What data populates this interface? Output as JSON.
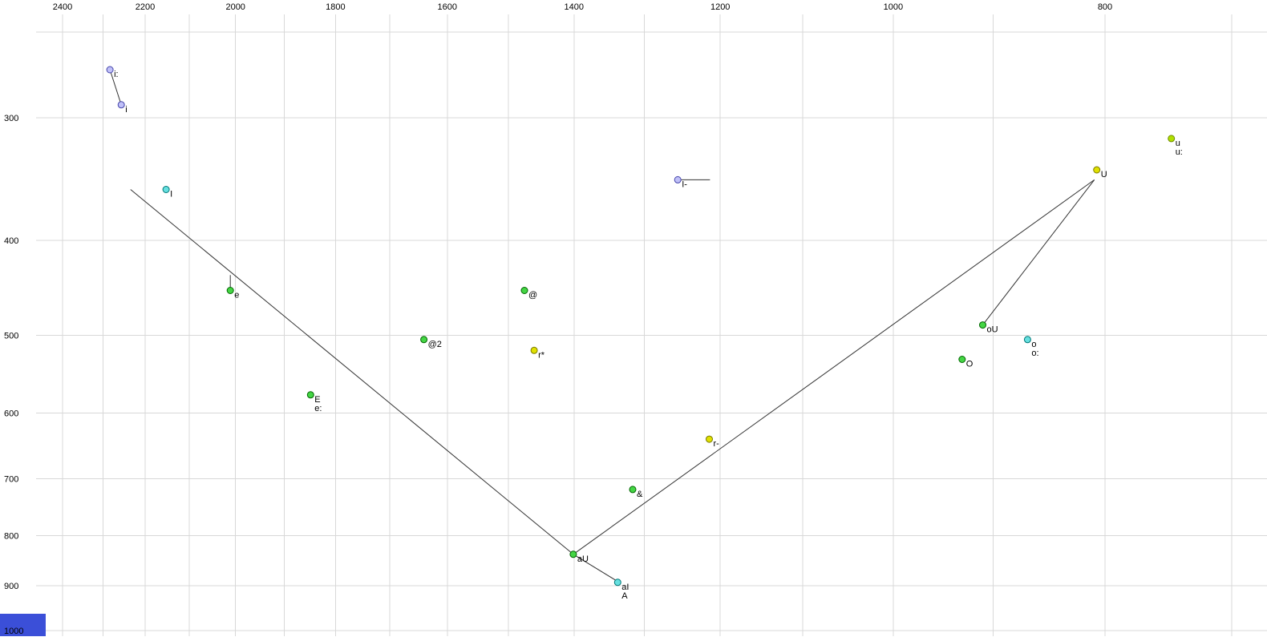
{
  "window": {
    "background": "#ffffff",
    "grid_color": "#d8d8d8",
    "corner_swatch_color": "#3b4fd8"
  },
  "chart_data": {
    "type": "scatter",
    "title": "",
    "description_of_axes": "F2 decreasing left-to-right (top tick labels), F1 increasing top-to-bottom (left tick labels), both log-scaled",
    "line_color": "#333333",
    "x_axis": {
      "tick_labels": [
        "2400",
        "2200",
        "2000",
        "1800",
        "1600",
        "1400",
        "1200",
        "1000",
        "800"
      ],
      "tick_values": [
        2400,
        2200,
        2000,
        1800,
        1600,
        1400,
        1200,
        1000,
        800
      ],
      "grid_values": [
        2400,
        2300,
        2200,
        2100,
        2000,
        1900,
        1800,
        1700,
        1600,
        1500,
        1400,
        1300,
        1200,
        1100,
        1000,
        900,
        800,
        700
      ],
      "scale": "log",
      "direction": "reversed",
      "range_at_edges": [
        2563,
        674
      ]
    },
    "y_axis": {
      "tick_labels": [
        "300",
        "400",
        "500",
        "600",
        "700",
        "800",
        "900",
        "1000"
      ],
      "tick_values": [
        300,
        400,
        500,
        600,
        700,
        800,
        900,
        1000
      ],
      "grid_values": [
        300,
        400,
        500,
        600,
        700,
        800,
        900,
        1000
      ],
      "scale": "log",
      "direction": "down",
      "range_at_edges": [
        245,
        1013
      ]
    },
    "point_styles": {
      "lavender": {
        "fill": "#c0c0f8",
        "stroke": "#4444aa"
      },
      "cyan": {
        "fill": "#66e0e0",
        "stroke": "#007777"
      },
      "green": {
        "fill": "#44d544",
        "stroke": "#006600"
      },
      "yellow": {
        "fill": "#e0e000",
        "stroke": "#7a7a00"
      },
      "yellowgreen": {
        "fill": "#b0e000",
        "stroke": "#6f8a00"
      }
    },
    "points": [
      {
        "label": [
          "i:"
        ],
        "f2": 2283,
        "f1": 268,
        "color": "lavender"
      },
      {
        "label": [
          "i"
        ],
        "f2": 2256,
        "f1": 291,
        "color": "lavender"
      },
      {
        "label": [
          "I"
        ],
        "f2": 2152,
        "f1": 355,
        "color": "cyan"
      },
      {
        "label": [
          "e"
        ],
        "f2": 2011,
        "f1": 450,
        "color": "green"
      },
      {
        "label": [
          "E",
          "e:"
        ],
        "f2": 1848,
        "f1": 575,
        "color": "green"
      },
      {
        "label": [
          "@2"
        ],
        "f2": 1640,
        "f1": 505,
        "color": "green"
      },
      {
        "label": [
          "@"
        ],
        "f2": 1475,
        "f1": 450,
        "color": "green"
      },
      {
        "label": [
          "r*"
        ],
        "f2": 1460,
        "f1": 518,
        "color": "yellow"
      },
      {
        "label": [
          "I-"
        ],
        "f2": 1255,
        "f1": 347,
        "color": "lavender"
      },
      {
        "label": [
          "r-"
        ],
        "f2": 1214,
        "f1": 638,
        "color": "yellow"
      },
      {
        "label": [
          "&"
        ],
        "f2": 1316,
        "f1": 718,
        "color": "green"
      },
      {
        "label": [
          "aU"
        ],
        "f2": 1401,
        "f1": 836,
        "color": "green"
      },
      {
        "label": [
          "aI",
          "A"
        ],
        "f2": 1337,
        "f1": 893,
        "color": "cyan"
      },
      {
        "label": [
          "oU"
        ],
        "f2": 910,
        "f1": 488,
        "color": "green"
      },
      {
        "label": [
          "o",
          "o:"
        ],
        "f2": 868,
        "f1": 505,
        "color": "cyan"
      },
      {
        "label": [
          "O"
        ],
        "f2": 930,
        "f1": 529,
        "color": "green"
      },
      {
        "label": [
          "U"
        ],
        "f2": 807,
        "f1": 339,
        "color": "yellow"
      },
      {
        "label": [
          "u",
          "u:"
        ],
        "f2": 746,
        "f1": 315,
        "color": "yellowgreen"
      }
    ],
    "segments": [
      [
        [
          2283,
          268
        ],
        [
          2256,
          291
        ]
      ],
      [
        [
          2234,
          355
        ],
        [
          1401,
          836
        ]
      ],
      [
        [
          1401,
          836
        ],
        [
          1337,
          891
        ]
      ],
      [
        [
          1401,
          836
        ],
        [
          809,
          347
        ]
      ],
      [
        [
          809,
          347
        ],
        [
          910,
          488
        ]
      ],
      [
        [
          1255,
          347
        ],
        [
          1213,
          347
        ]
      ],
      [
        [
          2011,
          434
        ],
        [
          2011,
          448
        ]
      ]
    ]
  }
}
